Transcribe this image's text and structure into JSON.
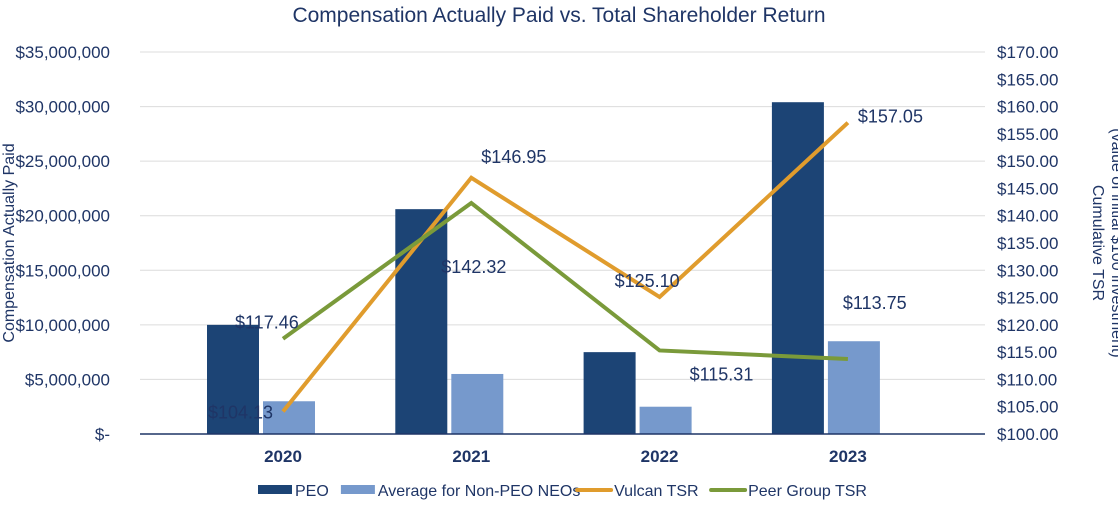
{
  "chart_data": {
    "type": "bar",
    "title": "Compensation Actually Paid vs. Total Shareholder Return",
    "ylabel": "Compensation Actually Paid",
    "y2label_line1": "Cumulative TSR",
    "y2label_line2": "(value of initial $100 investment)",
    "categories": [
      "2020",
      "2021",
      "2022",
      "2023"
    ],
    "ylim": [
      0,
      35000000
    ],
    "y2lim": [
      100,
      170
    ],
    "yticks": [
      "$-",
      "$5,000,000",
      "$10,000,000",
      "$15,000,000",
      "$20,000,000",
      "$25,000,000",
      "$30,000,000",
      "$35,000,000"
    ],
    "y2ticks": [
      "$100.00",
      "$105.00",
      "$110.00",
      "$115.00",
      "$120.00",
      "$125.00",
      "$130.00",
      "$135.00",
      "$140.00",
      "$145.00",
      "$150.00",
      "$155.00",
      "$160.00",
      "$165.00",
      "$170.00"
    ],
    "grid": true,
    "legend_position": "bottom",
    "series": [
      {
        "name": "PEO",
        "kind": "bar",
        "axis": "left",
        "color": "#1c4475",
        "values": [
          10000000,
          20600000,
          7500000,
          30400000
        ]
      },
      {
        "name": "Average for Non-PEO NEOs",
        "kind": "bar",
        "axis": "left",
        "color": "#7699cc",
        "values": [
          3000000,
          5500000,
          2500000,
          8500000
        ]
      },
      {
        "name": "Vulcan TSR",
        "kind": "line",
        "axis": "right",
        "color": "#e09c2d",
        "values": [
          104.13,
          146.95,
          125.1,
          157.05
        ],
        "labels": [
          "$104.13",
          "$146.95",
          "$125.10",
          "$157.05"
        ]
      },
      {
        "name": "Peer Group TSR",
        "kind": "line",
        "axis": "right",
        "color": "#7a9a3a",
        "values": [
          117.46,
          142.32,
          115.31,
          113.75
        ],
        "labels": [
          "$117.46",
          "$142.32",
          "$115.31",
          "$113.75"
        ]
      }
    ]
  }
}
